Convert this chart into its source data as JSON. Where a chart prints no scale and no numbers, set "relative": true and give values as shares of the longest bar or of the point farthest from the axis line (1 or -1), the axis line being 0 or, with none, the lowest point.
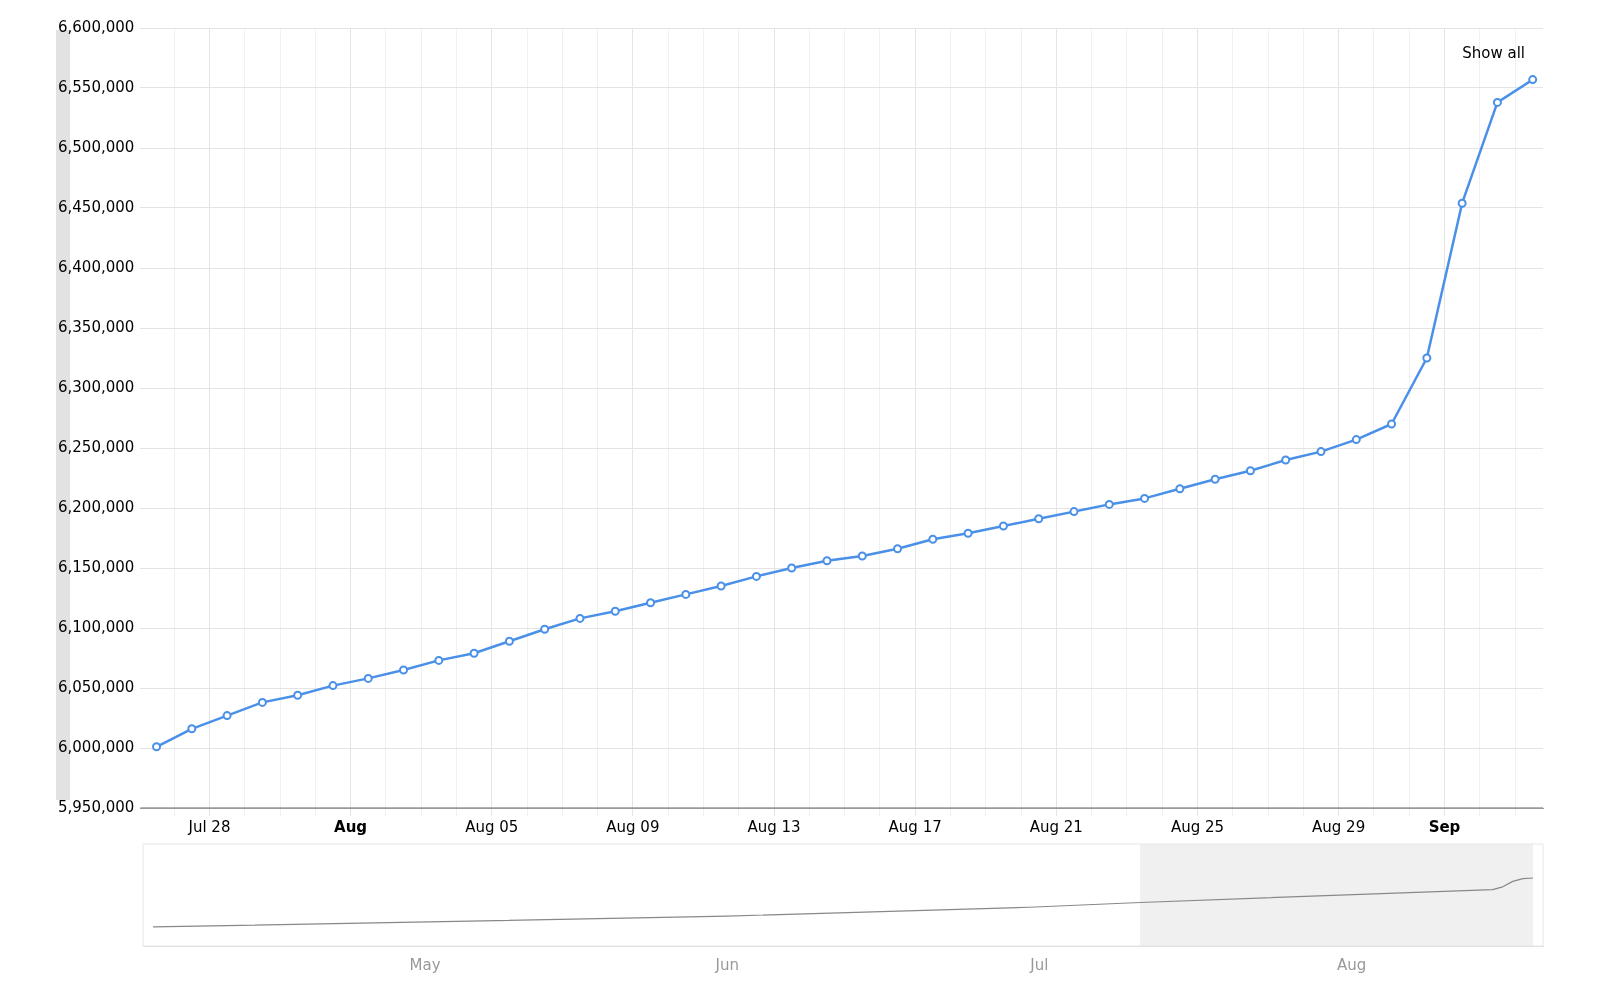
{
  "chart_data": [
    {
      "type": "line",
      "x": [
        "--07-26T12:00",
        "--07-27T12:00",
        "--07-28T12:00",
        "--07-29T12:00",
        "--07-30T12:00",
        "--07-31T12:00",
        "--08-01T12:00",
        "--08-02T12:00",
        "--08-03T12:00",
        "--08-04T12:00",
        "--08-05T12:00",
        "--08-06T12:00",
        "--08-07T12:00",
        "--08-08T12:00",
        "--08-09T12:00",
        "--08-10T12:00",
        "--08-11T12:00",
        "--08-12T12:00",
        "--08-13T12:00",
        "--08-14T12:00",
        "--08-15T12:00",
        "--08-16T12:00",
        "--08-17T12:00",
        "--08-18T12:00",
        "--08-19T12:00",
        "--08-20T12:00",
        "--08-21T12:00",
        "--08-22T12:00",
        "--08-23T12:00",
        "--08-24T12:00",
        "--08-25T12:00",
        "--08-26T12:00",
        "--08-27T12:00",
        "--08-28T12:00",
        "--08-29T12:00",
        "--08-30T12:00",
        "--08-31T12:00",
        "--09-01T12:00",
        "--09-02T12:00",
        "--09-03T12:00"
      ],
      "series": [
        {
          "color": "#4a90e8",
          "values": [
            6001000,
            6016000,
            6027000,
            6038000,
            6044000,
            6052000,
            6058000,
            6065000,
            6073000,
            6079000,
            6089000,
            6099000,
            6108000,
            6114000,
            6121000,
            6128000,
            6135000,
            6143000,
            6150000,
            6156000,
            6160000,
            6166000,
            6174000,
            6179000,
            6185000,
            6191000,
            6197000,
            6203000,
            6208000,
            6216000,
            6224000,
            6231000,
            6240000,
            6247000,
            6257000,
            6270000,
            6325000,
            6454000,
            6538000,
            6557000
          ]
        }
      ],
      "xlim": [
        "--07-26T01:00",
        "--09-03T19:00"
      ],
      "xticks": [
        {
          "value": "--07-27",
          "label": null
        },
        {
          "value": "--07-28",
          "label": "Jul 28"
        },
        {
          "value": "--07-29",
          "label": null
        },
        {
          "value": "--07-30",
          "label": null
        },
        {
          "value": "--07-31",
          "label": null
        },
        {
          "value": "--08-01",
          "label": "Aug"
        },
        {
          "value": "--08-02",
          "label": null
        },
        {
          "value": "--08-03",
          "label": null
        },
        {
          "value": "--08-04",
          "label": null
        },
        {
          "value": "--08-05",
          "label": "Aug 05"
        },
        {
          "value": "--08-06",
          "label": null
        },
        {
          "value": "--08-07",
          "label": null
        },
        {
          "value": "--08-08",
          "label": null
        },
        {
          "value": "--08-09",
          "label": "Aug 09"
        },
        {
          "value": "--08-10",
          "label": null
        },
        {
          "value": "--08-11",
          "label": null
        },
        {
          "value": "--08-12",
          "label": null
        },
        {
          "value": "--08-13",
          "label": "Aug 13"
        },
        {
          "value": "--08-14",
          "label": null
        },
        {
          "value": "--08-15",
          "label": null
        },
        {
          "value": "--08-16",
          "label": null
        },
        {
          "value": "--08-17",
          "label": "Aug 17"
        },
        {
          "value": "--08-18",
          "label": null
        },
        {
          "value": "--08-19",
          "label": null
        },
        {
          "value": "--08-20",
          "label": null
        },
        {
          "value": "--08-21",
          "label": "Aug 21"
        },
        {
          "value": "--08-22",
          "label": null
        },
        {
          "value": "--08-23",
          "label": null
        },
        {
          "value": "--08-24",
          "label": null
        },
        {
          "value": "--08-25",
          "label": "Aug 25"
        },
        {
          "value": "--08-26",
          "label": null
        },
        {
          "value": "--08-27",
          "label": null
        },
        {
          "value": "--08-28",
          "label": null
        },
        {
          "value": "--08-29",
          "label": "Aug 29"
        },
        {
          "value": "--08-30",
          "label": null
        },
        {
          "value": "--08-31",
          "label": null
        },
        {
          "value": "--09-01",
          "label": "Sep"
        },
        {
          "value": "--09-02",
          "label": null
        },
        {
          "value": "--09-03",
          "label": null
        }
      ],
      "ylim": [
        5950000,
        6600000
      ],
      "yticks": [
        {
          "value": 5950000,
          "label": "5,950,000"
        },
        {
          "value": 6000000,
          "label": "6,000,000"
        },
        {
          "value": 6050000,
          "label": "6,050,000"
        },
        {
          "value": 6100000,
          "label": "6,100,000"
        },
        {
          "value": 6150000,
          "label": "6,150,000"
        },
        {
          "value": 6200000,
          "label": "6,200,000"
        },
        {
          "value": 6250000,
          "label": "6,250,000"
        },
        {
          "value": 6300000,
          "label": "6,300,000"
        },
        {
          "value": 6350000,
          "label": "6,350,000"
        },
        {
          "value": 6400000,
          "label": "6,400,000"
        },
        {
          "value": 6450000,
          "label": "6,450,000"
        },
        {
          "value": 6500000,
          "label": "6,500,000"
        },
        {
          "value": 6550000,
          "label": "6,550,000"
        },
        {
          "value": 6600000,
          "label": "6,600,000"
        }
      ],
      "grid": true,
      "marker": "circle",
      "line_style": "solid",
      "annotations": [
        "Show all"
      ]
    },
    {
      "type": "line",
      "relative": true,
      "tick_labels": "x",
      "marker": "none",
      "x": [
        "--04-19",
        "--05-15",
        "--06-15",
        "--07-15",
        "--07-26",
        "--08-30",
        "--08-31",
        "--09-01",
        "--09-02",
        "--09-03"
      ],
      "series": [
        {
          "color": "#888888",
          "values": [
            0.28,
            0.35,
            0.44,
            0.57,
            0.64,
            0.83,
            0.87,
            0.95,
            0.99,
            1
          ]
        }
      ],
      "xlim": [
        "--04-18",
        "--09-04"
      ],
      "xticks": [
        {
          "value": "--05-16",
          "label": "May"
        },
        {
          "value": "--06-15",
          "label": "Jun"
        },
        {
          "value": "--07-16",
          "label": "Jul"
        },
        {
          "value": "--08-16",
          "label": "Aug"
        }
      ],
      "bands": [
        {
          "axis": "x",
          "from": "--07-26",
          "to": "--09-03",
          "color": "#f0f0f0"
        }
      ]
    }
  ]
}
